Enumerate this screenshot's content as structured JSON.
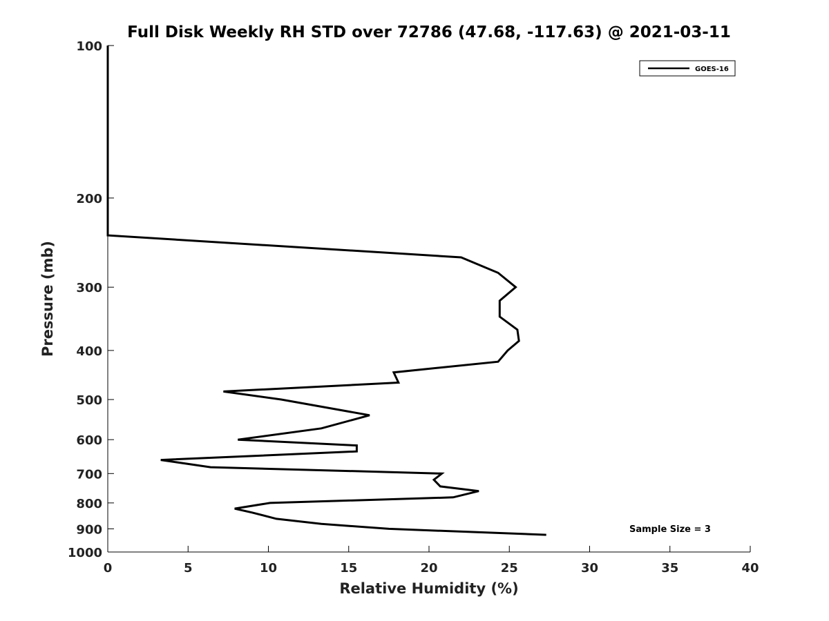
{
  "chart_data": {
    "type": "line",
    "title": "Full Disk Weekly RH STD over 72786 (47.68, -117.63) @ 2021-03-11",
    "xlabel": "Relative Humidity (%)",
    "ylabel": "Pressure (mb)",
    "xlim": [
      0,
      40
    ],
    "ylim": [
      1000,
      100
    ],
    "yscale": "log",
    "reversed_y": true,
    "x_ticks": [
      0,
      5,
      10,
      15,
      20,
      25,
      30,
      35,
      40
    ],
    "y_ticks": [
      100,
      200,
      300,
      400,
      500,
      600,
      700,
      800,
      900,
      1000
    ],
    "grid": false,
    "legend_position": "top-right",
    "line_color": "#000000",
    "annotation": "Sample Size = 3",
    "series": [
      {
        "name": "GOES-16",
        "points": [
          {
            "rh": 0.0,
            "p": 100
          },
          {
            "rh": 0.0,
            "p": 150
          },
          {
            "rh": 0.0,
            "p": 200
          },
          {
            "rh": 0.0,
            "p": 237
          },
          {
            "rh": 22.0,
            "p": 262
          },
          {
            "rh": 24.3,
            "p": 281
          },
          {
            "rh": 25.4,
            "p": 300
          },
          {
            "rh": 24.4,
            "p": 319
          },
          {
            "rh": 24.4,
            "p": 343
          },
          {
            "rh": 25.5,
            "p": 364
          },
          {
            "rh": 25.6,
            "p": 383
          },
          {
            "rh": 24.9,
            "p": 400
          },
          {
            "rh": 24.3,
            "p": 421
          },
          {
            "rh": 17.8,
            "p": 442
          },
          {
            "rh": 18.1,
            "p": 463
          },
          {
            "rh": 7.2,
            "p": 482
          },
          {
            "rh": 10.8,
            "p": 500
          },
          {
            "rh": 16.3,
            "p": 537
          },
          {
            "rh": 13.3,
            "p": 570
          },
          {
            "rh": 8.1,
            "p": 600
          },
          {
            "rh": 15.5,
            "p": 616
          },
          {
            "rh": 15.5,
            "p": 633
          },
          {
            "rh": 3.3,
            "p": 658
          },
          {
            "rh": 6.4,
            "p": 680
          },
          {
            "rh": 20.8,
            "p": 700
          },
          {
            "rh": 20.3,
            "p": 720
          },
          {
            "rh": 20.7,
            "p": 742
          },
          {
            "rh": 23.1,
            "p": 758
          },
          {
            "rh": 21.5,
            "p": 780
          },
          {
            "rh": 10.1,
            "p": 800
          },
          {
            "rh": 7.9,
            "p": 821
          },
          {
            "rh": 9.0,
            "p": 836
          },
          {
            "rh": 10.5,
            "p": 860
          },
          {
            "rh": 13.3,
            "p": 880
          },
          {
            "rh": 17.5,
            "p": 900
          },
          {
            "rh": 27.3,
            "p": 925
          }
        ]
      }
    ]
  }
}
